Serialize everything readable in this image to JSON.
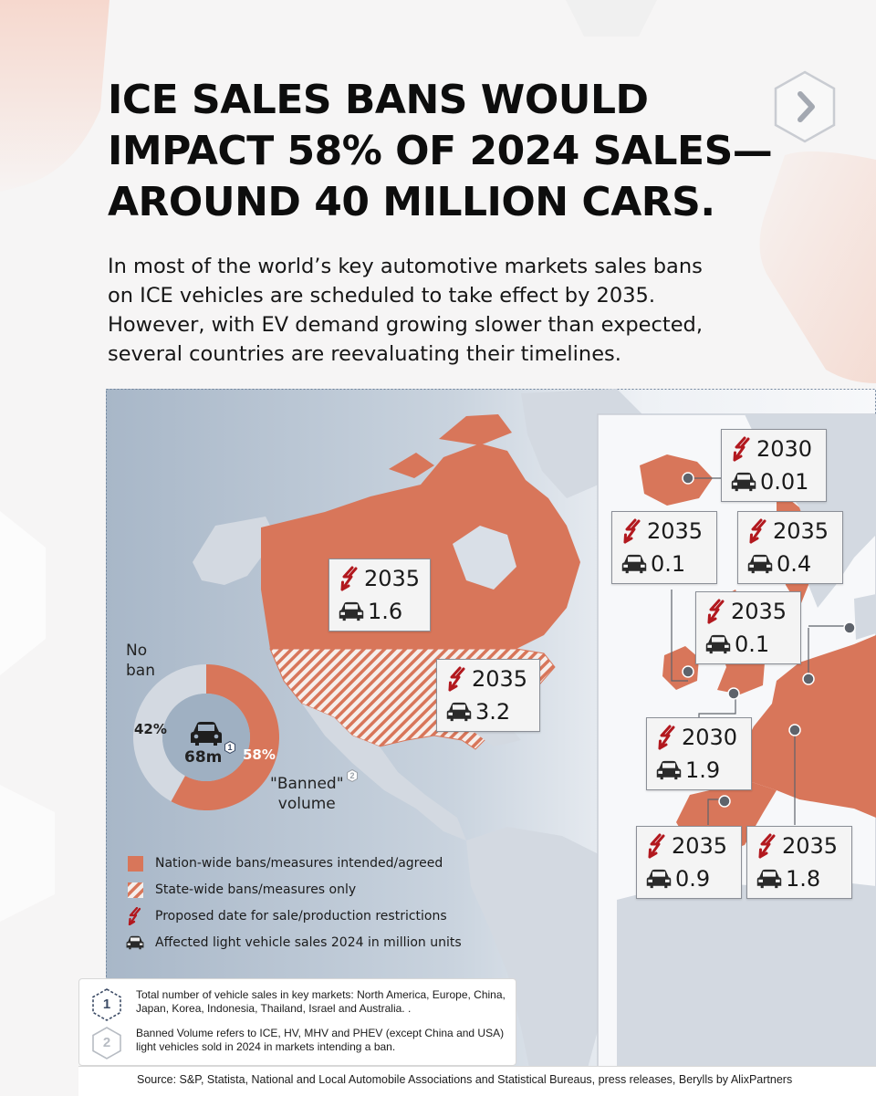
{
  "headline": {
    "line1": "ICE SALES BANS WOULD",
    "line2": "IMPACT 58% OF 2024 SALES—",
    "line3": "AROUND 40 MILLION CARS."
  },
  "intro": {
    "line1": "In most of the world’s key automotive markets sales bans",
    "line2": "on ICE vehicles are scheduled to take effect by 2035.",
    "line3": "However, with EV demand growing slower than expected,",
    "line4": "several countries are reevaluating their timelines."
  },
  "nav": {
    "next_icon": "chevron-right-icon"
  },
  "colors": {
    "nation_ban": "#d8765a",
    "state_ban_hatch": "#d8765a",
    "no_ban": "#d3d9e1",
    "bolt": "#b2181e",
    "callout_border": "#8b8f97"
  },
  "callouts": [
    {
      "id": "canada",
      "year": "2035",
      "volume": "1.6"
    },
    {
      "id": "usa",
      "year": "2035",
      "volume": "3.2"
    },
    {
      "id": "iceland",
      "year": "2030",
      "volume": "0.01"
    },
    {
      "id": "ireland",
      "year": "2035",
      "volume": "0.1"
    },
    {
      "id": "norway",
      "year": "2035",
      "volume": "0.4"
    },
    {
      "id": "netherlands",
      "year": "2035",
      "volume": "0.1"
    },
    {
      "id": "uk",
      "year": "2030",
      "volume": "1.9"
    },
    {
      "id": "spain",
      "year": "2035",
      "volume": "0.9"
    },
    {
      "id": "france",
      "year": "2035",
      "volume": "1.8"
    }
  ],
  "donut": {
    "no_ban_label_1": "No",
    "no_ban_label_2": "ban",
    "no_ban_pct": "42%",
    "banned_pct": "58%",
    "center_value": "68m",
    "center_note": "1",
    "banned_label_1": "\"Banned\"",
    "banned_label_2": "volume",
    "banned_note": "2"
  },
  "chart_data": {
    "type": "pie",
    "title": "",
    "categories": [
      "No ban",
      "\"Banned\" volume"
    ],
    "values": [
      42,
      58
    ],
    "unit": "%",
    "total": "68m",
    "colors": [
      "#d3d9e1",
      "#d8765a"
    ],
    "markets": [
      {
        "market": "Canada",
        "ban_year": 2035,
        "affected_sales_2024_m": 1.6,
        "ban_type": "nation-wide"
      },
      {
        "market": "USA",
        "ban_year": 2035,
        "affected_sales_2024_m": 3.2,
        "ban_type": "state-wide"
      },
      {
        "market": "Iceland",
        "ban_year": 2030,
        "affected_sales_2024_m": 0.01,
        "ban_type": "nation-wide"
      },
      {
        "market": "Ireland",
        "ban_year": 2035,
        "affected_sales_2024_m": 0.1,
        "ban_type": "nation-wide"
      },
      {
        "market": "Norway",
        "ban_year": 2035,
        "affected_sales_2024_m": 0.4,
        "ban_type": "nation-wide"
      },
      {
        "market": "Netherlands",
        "ban_year": 2035,
        "affected_sales_2024_m": 0.1,
        "ban_type": "nation-wide"
      },
      {
        "market": "UK",
        "ban_year": 2030,
        "affected_sales_2024_m": 1.9,
        "ban_type": "nation-wide"
      },
      {
        "market": "Spain",
        "ban_year": 2035,
        "affected_sales_2024_m": 0.9,
        "ban_type": "nation-wide"
      },
      {
        "market": "France",
        "ban_year": 2035,
        "affected_sales_2024_m": 1.8,
        "ban_type": "nation-wide"
      }
    ]
  },
  "legend": [
    {
      "icon": "nation-ban-swatch",
      "label": "Nation-wide bans/measures intended/agreed"
    },
    {
      "icon": "state-ban-hatch-swatch",
      "label": "State-wide bans/measures only"
    },
    {
      "icon": "lightning-bolt-icon",
      "label": "Proposed date for sale/production restrictions"
    },
    {
      "icon": "car-icon",
      "label": "Affected light vehicle sales 2024 in million units"
    }
  ],
  "notes": [
    {
      "number": "1",
      "text": "Total number of vehicle sales in key markets: North America, Europe, China, Japan, Korea, Indonesia, Thailand, Israel and Australia. ."
    },
    {
      "number": "2",
      "text": "Banned Volume refers to ICE, HV, MHV and PHEV (except China and USA) light vehicles sold in 2024 in markets intending a ban."
    }
  ],
  "source": "Source: S&P, Statista, National and Local Automobile Associations and Statistical Bureaus, press releases, Berylls by AlixPartners"
}
